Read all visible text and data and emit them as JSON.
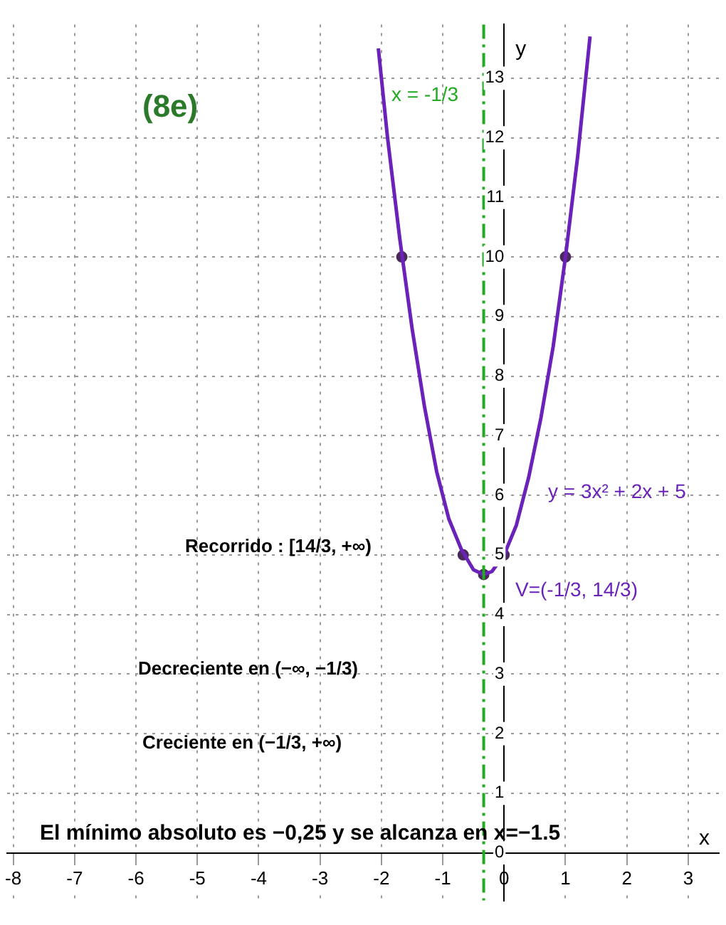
{
  "chart_data": {
    "type": "line",
    "xlabel": "x",
    "ylabel": "y",
    "xlim": [
      -8.1,
      3.5
    ],
    "ylim": [
      -0.8,
      13.9
    ],
    "xticks": [
      -8,
      -7,
      -6,
      -5,
      -4,
      -3,
      -2,
      -1,
      0,
      1,
      2,
      3
    ],
    "yticks": [
      0,
      1,
      2,
      3,
      4,
      5,
      6,
      7,
      8,
      9,
      10,
      11,
      12,
      13
    ],
    "grid": true,
    "legend": false,
    "series": [
      {
        "color": "#6a22b8",
        "marker": "none",
        "x": [
          -2.05,
          -1.9,
          -1.7,
          -1.5,
          -1.3,
          -1.1,
          -0.9,
          -0.7,
          -0.5,
          -0.333,
          -0.2,
          0,
          0.2,
          0.4,
          0.6,
          0.8,
          1,
          1.2,
          1.4
        ],
        "values": [
          13.5,
          12.0,
          10.3,
          8.8,
          7.5,
          6.4,
          5.6,
          5.1,
          4.75,
          4.67,
          4.72,
          5.0,
          5.5,
          6.3,
          7.3,
          8.5,
          10.0,
          11.7,
          13.7
        ]
      },
      {
        "type": "scatter",
        "color": "#4a2a5a",
        "marker": "circle",
        "x": [
          -1.667,
          -0.667,
          -0.333,
          0,
          1
        ],
        "values": [
          10,
          5,
          4.67,
          5,
          10
        ]
      }
    ],
    "ref_lines": [
      {
        "axis": "x",
        "value": -0.3333333333,
        "color": "#22aa22",
        "line_style": "dashed"
      }
    ],
    "annotations": [
      "x = -1/3",
      "(8e)",
      "y = 3x² + 2x + 5",
      "V=(-1/3, 14/3)",
      "Recorrido : [14/3, +∞)",
      "Decreciente en (−∞, −1/3)",
      "Creciente en (−1/3, +∞)",
      "El mínimo absoluto es −0,25 y se alcanza en x=−1.5"
    ]
  }
}
